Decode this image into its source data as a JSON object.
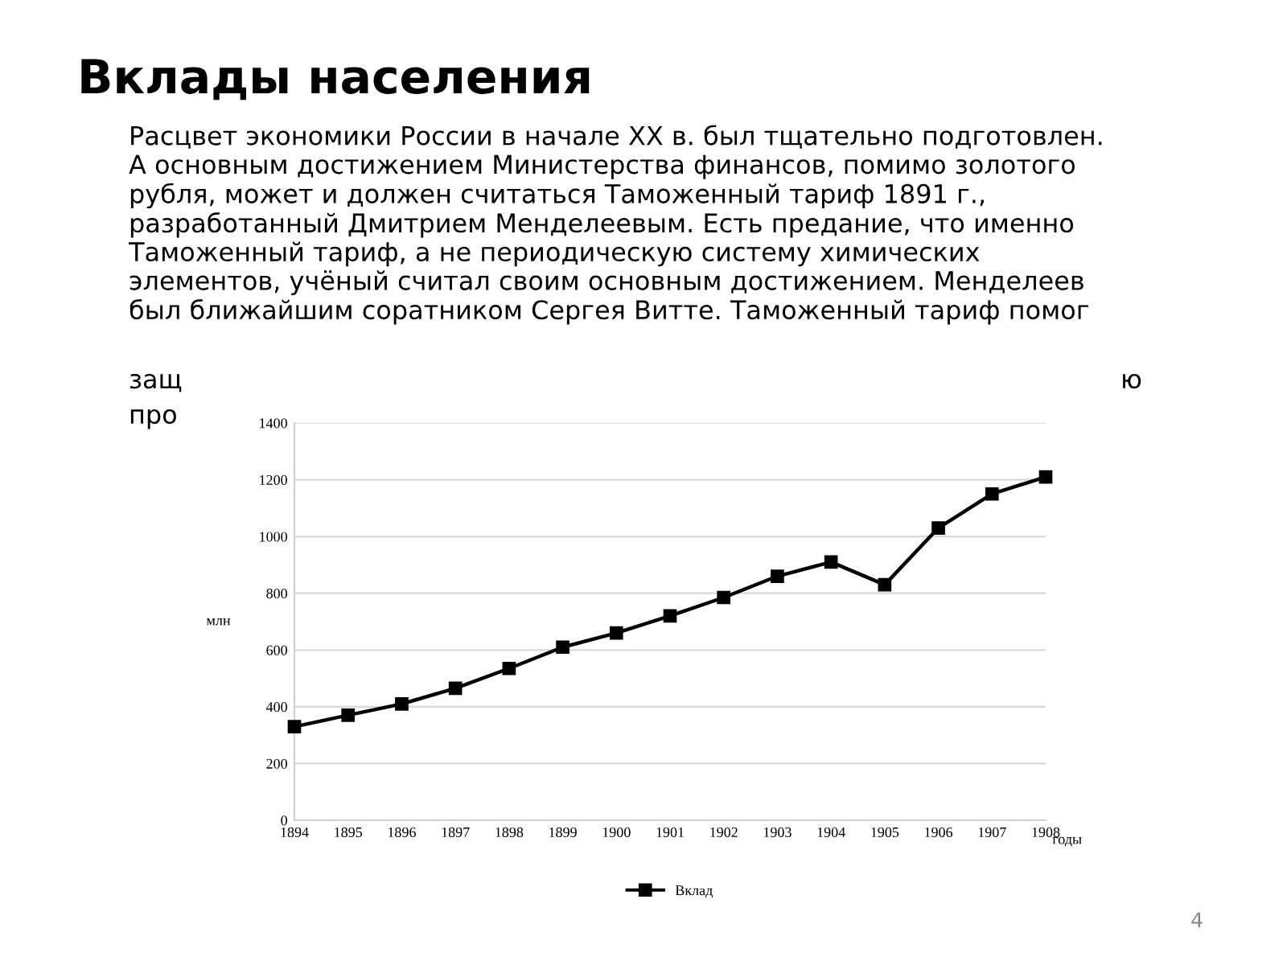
{
  "chart_data": {
    "type": "line",
    "title": "Вклады населения",
    "subtitle": "Расцвет экономики России в начале XX в. был тщательно подготовлен.\nА основным достижением Министерства финансов, помимо золотого\nрубля, может и должен считаться Таможенный тариф 1891 г.,\nразработанный Дмитрием Менделеевым. Есть предание, что именно\nТаможенный тариф, а не периодическую систему химических\nэлементов, учёный считал своим основным достижением. Менделеев\nбыл ближайшим соратником Сергея Витте. Таможенный тариф помог",
    "annotations": [
      "защ",
      "ю",
      "про",
      "4"
    ],
    "xlabel": "годы",
    "ylabel": "млн",
    "categories": [
      "1894",
      "1895",
      "1896",
      "1897",
      "1898",
      "1899",
      "1900",
      "1901",
      "1902",
      "1903",
      "1904",
      "1905",
      "1906",
      "1907",
      "1908"
    ],
    "series": [
      {
        "name": "Вклад",
        "color": "#000000",
        "values": [
          330,
          370,
          410,
          465,
          535,
          610,
          660,
          720,
          785,
          860,
          910,
          830,
          1030,
          1150,
          1210
        ]
      }
    ],
    "ylim": [
      0,
      1400
    ],
    "yticks": [
      0,
      200,
      400,
      600,
      800,
      1000,
      1200,
      1400
    ],
    "grid": "y",
    "legend": "bottom",
    "marker": "square",
    "line_style": "solid"
  }
}
